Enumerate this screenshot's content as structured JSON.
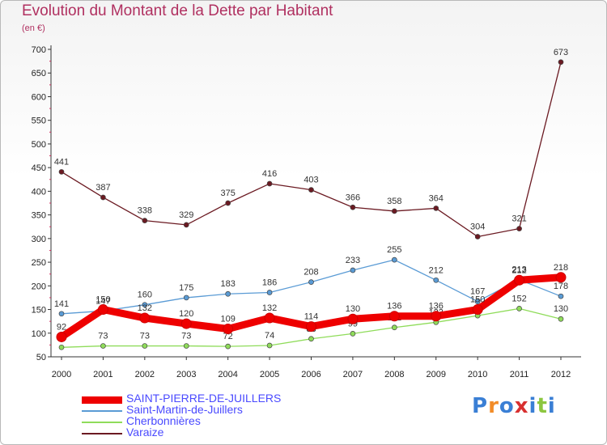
{
  "title": "Evolution du Montant de la Dette par Habitant",
  "subtitle": "(en €)",
  "logo": {
    "letters": [
      "P",
      "r",
      "o",
      "x",
      "i",
      "t",
      "i"
    ],
    "colors": [
      "#3a7fd5",
      "#f28c28",
      "#3a7fd5",
      "#d83030",
      "#3a7fd5",
      "#8cc63f",
      "#3a7fd5"
    ]
  },
  "chart_data": {
    "type": "line",
    "x": [
      "2000",
      "2001",
      "2002",
      "2003",
      "2004",
      "2005",
      "2006",
      "2007",
      "2008",
      "2009",
      "2010",
      "2011",
      "2012"
    ],
    "ylim": [
      50,
      700
    ],
    "yticks": [
      50,
      100,
      150,
      200,
      250,
      300,
      350,
      400,
      450,
      500,
      550,
      600,
      650,
      700
    ],
    "grid": false,
    "legend_position": "bottom",
    "series": [
      {
        "name": "Varaize",
        "color": "#6b1a22",
        "values": [
          441,
          387,
          338,
          329,
          375,
          416,
          403,
          366,
          358,
          364,
          304,
          321,
          673
        ],
        "labels": [
          "441",
          "387",
          "338",
          "329",
          "375",
          "416",
          "403",
          "366",
          "358",
          "364",
          "304",
          "321",
          "673"
        ]
      },
      {
        "name": "Saint-Martin-de-Juillers",
        "color": "#5a9bd5",
        "values": [
          141,
          147,
          160,
          175,
          183,
          186,
          208,
          233,
          255,
          212,
          167,
          213,
          178
        ],
        "labels": [
          "141",
          "147",
          "160",
          "175",
          "183",
          "186",
          "208",
          "233",
          "255",
          "212",
          "167",
          "213",
          "178"
        ]
      },
      {
        "name": "Cherbonnières",
        "color": "#8fdc5a",
        "values": [
          70,
          73,
          73,
          73,
          72,
          74,
          88,
          99,
          112,
          123,
          137,
          152,
          130
        ],
        "labels": [
          "",
          "73",
          "73",
          "73",
          "72",
          "74",
          "88",
          "99",
          "112",
          "123",
          "",
          "152",
          "130"
        ]
      },
      {
        "name": "SAINT-PIERRE-DE-JUILLERS",
        "color": "#ee0000",
        "values": [
          92,
          150,
          132,
          120,
          109,
          132,
          114,
          130,
          136,
          136,
          150,
          212,
          218
        ],
        "labels": [
          "92",
          "150",
          "132",
          "120",
          "109",
          "132",
          "114",
          "130",
          "136",
          "136",
          "150",
          "212",
          "218"
        ]
      }
    ]
  },
  "legend": [
    {
      "name": "SAINT-PIERRE-DE-JUILLERS",
      "color": "#ee0000",
      "thick": true
    },
    {
      "name": "Saint-Martin-de-Juillers",
      "color": "#5a9bd5",
      "thick": false
    },
    {
      "name": "Cherbonnières",
      "color": "#8fdc5a",
      "thick": false
    },
    {
      "name": "Varaize",
      "color": "#6b1a22",
      "thick": false
    }
  ]
}
